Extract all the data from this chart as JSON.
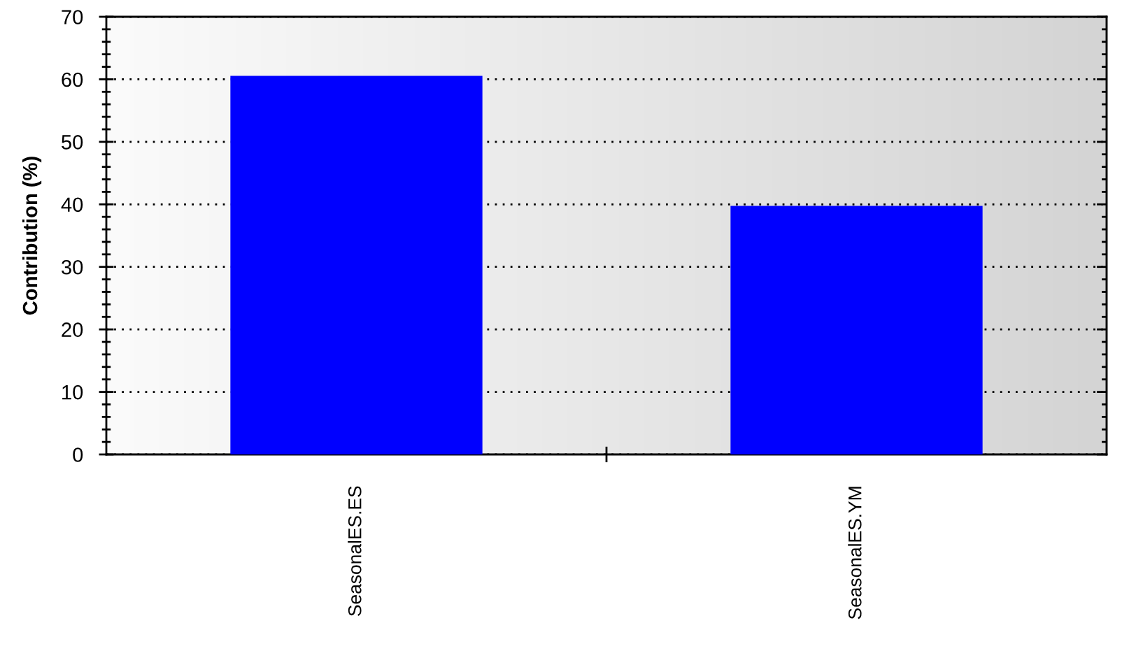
{
  "chart_data": {
    "type": "bar",
    "ylabel": "Contribution (%)",
    "categories": [
      "SeasonalES.ES",
      "SeasonalES.YM"
    ],
    "values": [
      60.4,
      39.6
    ],
    "color": "#0000ff",
    "ylim": [
      0,
      70
    ],
    "yticks": [
      0,
      10,
      20,
      30,
      40,
      50,
      60,
      70
    ],
    "grid": "y"
  }
}
